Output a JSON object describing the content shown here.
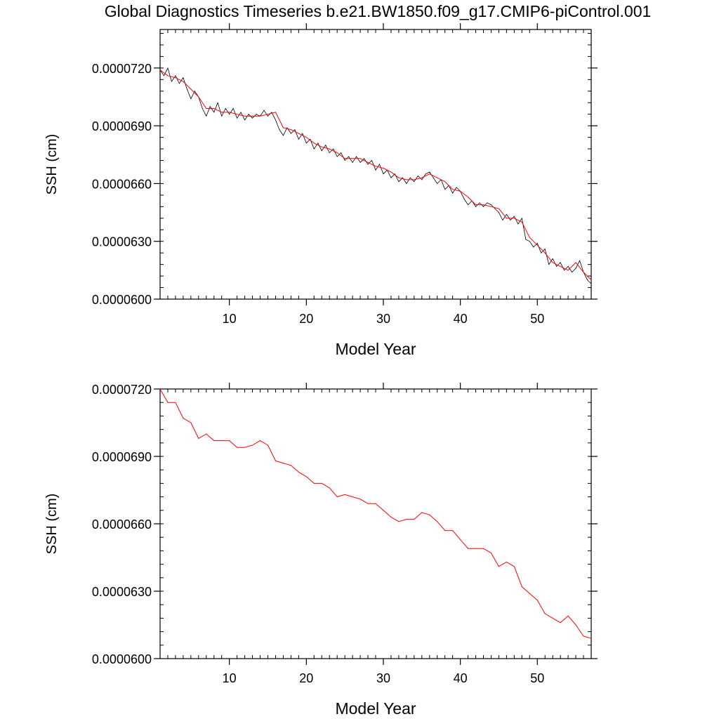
{
  "figure": {
    "title": "Global Diagnostics Timeseries b.e21.BW1850.f09_g17.CMIP6-piControl.001"
  },
  "colors": {
    "monthly_series": "#000000",
    "annual_series": "#ff0000",
    "axes": "#000000",
    "background": "#ffffff"
  },
  "chart_data": [
    {
      "type": "line",
      "title": "Global Diagnostics Timeseries b.e21.BW1850.f09_g17.CMIP6-piControl.001",
      "xlabel": "Model Year",
      "ylabel": "SSH (cm)",
      "xlim": [
        1,
        57
      ],
      "ylim": [
        6e-05,
        7.4e-05
      ],
      "xticks": [
        10,
        20,
        30,
        40,
        50
      ],
      "xtick_labels": [
        "10",
        "20",
        "30",
        "40",
        "50"
      ],
      "yticks": [
        6e-05,
        6.3e-05,
        6.6e-05,
        6.9e-05,
        7.2e-05
      ],
      "ytick_labels": [
        "0.0000600",
        "0.0000630",
        "0.0000660",
        "0.0000690",
        "0.0000720"
      ],
      "grid": false,
      "series": [
        {
          "kind": "monthly",
          "color": "#000000",
          "x": [
            1.0,
            1.5,
            2.0,
            2.5,
            3.0,
            3.5,
            4.0,
            4.5,
            5.0,
            5.5,
            6.0,
            6.5,
            7.0,
            7.5,
            8.0,
            8.5,
            9.0,
            9.5,
            10.0,
            10.5,
            11.0,
            11.5,
            12.0,
            12.5,
            13.0,
            13.5,
            14.0,
            14.5,
            15.0,
            15.5,
            16.0,
            16.5,
            17.0,
            17.5,
            18.0,
            18.5,
            19.0,
            19.5,
            20.0,
            20.5,
            21.0,
            21.5,
            22.0,
            22.5,
            23.0,
            23.5,
            24.0,
            24.5,
            25.0,
            25.5,
            26.0,
            26.5,
            27.0,
            27.5,
            28.0,
            28.5,
            29.0,
            29.5,
            30.0,
            30.5,
            31.0,
            31.5,
            32.0,
            32.5,
            33.0,
            33.5,
            34.0,
            34.5,
            35.0,
            35.5,
            36.0,
            36.5,
            37.0,
            37.5,
            38.0,
            38.5,
            39.0,
            39.5,
            40.0,
            40.5,
            41.0,
            41.5,
            42.0,
            42.5,
            43.0,
            43.5,
            44.0,
            44.5,
            45.0,
            45.5,
            46.0,
            46.5,
            47.0,
            47.5,
            48.0,
            48.5,
            49.0,
            49.5,
            50.0,
            50.5,
            51.0,
            51.5,
            52.0,
            52.5,
            53.0,
            53.5,
            54.0,
            54.5,
            55.0,
            55.5,
            56.0,
            56.5,
            57.0
          ],
          "y": [
            7.19e-05,
            7.16e-05,
            7.2e-05,
            7.13e-05,
            7.16e-05,
            7.12e-05,
            7.15e-05,
            7.09e-05,
            7.04e-05,
            7.08e-05,
            7.05e-05,
            6.99e-05,
            6.95e-05,
            7e-05,
            6.97e-05,
            7.02e-05,
            6.95e-05,
            6.99e-05,
            6.96e-05,
            6.99e-05,
            6.94e-05,
            6.97e-05,
            6.93e-05,
            6.96e-05,
            6.94e-05,
            6.96e-05,
            6.95e-05,
            6.98e-05,
            6.95e-05,
            6.97e-05,
            6.93e-05,
            6.88e-05,
            6.85e-05,
            6.89e-05,
            6.86e-05,
            6.88e-05,
            6.83e-05,
            6.86e-05,
            6.81e-05,
            6.83e-05,
            6.78e-05,
            6.81e-05,
            6.77e-05,
            6.8e-05,
            6.76e-05,
            6.78e-05,
            6.74e-05,
            6.76e-05,
            6.72e-05,
            6.74e-05,
            6.71e-05,
            6.74e-05,
            6.71e-05,
            6.73e-05,
            6.7e-05,
            6.72e-05,
            6.67e-05,
            6.7e-05,
            6.65e-05,
            6.67e-05,
            6.63e-05,
            6.65e-05,
            6.61e-05,
            6.63e-05,
            6.6e-05,
            6.63e-05,
            6.61e-05,
            6.64e-05,
            6.62e-05,
            6.65e-05,
            6.66e-05,
            6.63e-05,
            6.6e-05,
            6.62e-05,
            6.57e-05,
            6.59e-05,
            6.55e-05,
            6.58e-05,
            6.56e-05,
            6.52e-05,
            6.49e-05,
            6.51e-05,
            6.48e-05,
            6.5e-05,
            6.48e-05,
            6.5e-05,
            6.49e-05,
            6.47e-05,
            6.45e-05,
            6.41e-05,
            6.44e-05,
            6.41e-05,
            6.43e-05,
            6.39e-05,
            6.42e-05,
            6.31e-05,
            6.3e-05,
            6.27e-05,
            6.29e-05,
            6.24e-05,
            6.26e-05,
            6.18e-05,
            6.21e-05,
            6.17e-05,
            6.19e-05,
            6.15e-05,
            6.17e-05,
            6.14e-05,
            6.16e-05,
            6.2e-05,
            6.14e-05,
            6.1e-05,
            6.08e-05
          ]
        },
        {
          "kind": "annual",
          "color": "#ff0000",
          "x": [
            1,
            2,
            3,
            4,
            5,
            6,
            7,
            8,
            9,
            10,
            11,
            12,
            13,
            14,
            15,
            16,
            17,
            18,
            19,
            20,
            21,
            22,
            23,
            24,
            25,
            26,
            27,
            28,
            29,
            30,
            31,
            32,
            33,
            34,
            35,
            36,
            37,
            38,
            39,
            40,
            41,
            42,
            43,
            44,
            45,
            46,
            47,
            48,
            49,
            50,
            51,
            52,
            53,
            54,
            55,
            56,
            57
          ],
          "y": [
            7.19e-05,
            7.16e-05,
            7.15e-05,
            7.13e-05,
            7.09e-05,
            7.05e-05,
            6.99e-05,
            6.99e-05,
            6.97e-05,
            6.97e-05,
            6.96e-05,
            6.95e-05,
            6.95e-05,
            6.95e-05,
            6.96e-05,
            6.97e-05,
            6.89e-05,
            6.88e-05,
            6.86e-05,
            6.84e-05,
            6.81e-05,
            6.79e-05,
            6.78e-05,
            6.76e-05,
            6.73e-05,
            6.73e-05,
            6.73e-05,
            6.71e-05,
            6.69e-05,
            6.68e-05,
            6.66e-05,
            6.63e-05,
            6.62e-05,
            6.62e-05,
            6.63e-05,
            6.65e-05,
            6.63e-05,
            6.61e-05,
            6.57e-05,
            6.56e-05,
            6.53e-05,
            6.49e-05,
            6.49e-05,
            6.48e-05,
            6.47e-05,
            6.42e-05,
            6.42e-05,
            6.4e-05,
            6.32e-05,
            6.28e-05,
            6.24e-05,
            6.19e-05,
            6.17e-05,
            6.15e-05,
            6.19e-05,
            6.14e-05,
            6.1e-05
          ]
        }
      ]
    },
    {
      "type": "line",
      "xlabel": "Model Year",
      "ylabel": "SSH (cm)",
      "xlim": [
        1,
        57
      ],
      "ylim": [
        6e-05,
        7.2e-05
      ],
      "xticks": [
        10,
        20,
        30,
        40,
        50
      ],
      "xtick_labels": [
        "10",
        "20",
        "30",
        "40",
        "50"
      ],
      "yticks": [
        6e-05,
        6.3e-05,
        6.6e-05,
        6.9e-05,
        7.2e-05
      ],
      "ytick_labels": [
        "0.0000600",
        "0.0000630",
        "0.0000660",
        "0.0000690",
        "0.0000720"
      ],
      "grid": false,
      "series": [
        {
          "kind": "annual",
          "color": "#ff0000",
          "x": [
            1,
            2,
            3,
            4,
            5,
            6,
            7,
            8,
            9,
            10,
            11,
            12,
            13,
            14,
            15,
            16,
            17,
            18,
            19,
            20,
            21,
            22,
            23,
            24,
            25,
            26,
            27,
            28,
            29,
            30,
            31,
            32,
            33,
            34,
            35,
            36,
            37,
            38,
            39,
            40,
            41,
            42,
            43,
            44,
            45,
            46,
            47,
            48,
            49,
            50,
            51,
            52,
            53,
            54,
            55,
            56,
            57
          ],
          "y": [
            7.2e-05,
            7.14e-05,
            7.14e-05,
            7.07e-05,
            7.05e-05,
            6.98e-05,
            7e-05,
            6.97e-05,
            6.97e-05,
            6.97e-05,
            6.94e-05,
            6.94e-05,
            6.95e-05,
            6.97e-05,
            6.95e-05,
            6.88e-05,
            6.87e-05,
            6.86e-05,
            6.83e-05,
            6.81e-05,
            6.78e-05,
            6.78e-05,
            6.76e-05,
            6.72e-05,
            6.73e-05,
            6.72e-05,
            6.71e-05,
            6.69e-05,
            6.69e-05,
            6.66e-05,
            6.63e-05,
            6.61e-05,
            6.62e-05,
            6.62e-05,
            6.65e-05,
            6.64e-05,
            6.61e-05,
            6.57e-05,
            6.57e-05,
            6.53e-05,
            6.49e-05,
            6.49e-05,
            6.49e-05,
            6.47e-05,
            6.41e-05,
            6.43e-05,
            6.41e-05,
            6.32e-05,
            6.29e-05,
            6.26e-05,
            6.2e-05,
            6.18e-05,
            6.16e-05,
            6.19e-05,
            6.15e-05,
            6.1e-05,
            6.09e-05
          ]
        }
      ]
    }
  ]
}
